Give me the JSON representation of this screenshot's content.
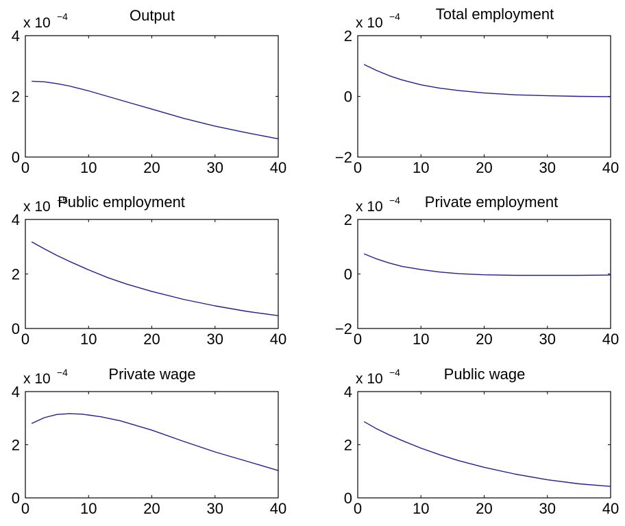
{
  "chart_data": [
    {
      "type": "line",
      "title": "Output",
      "multiplier": "x 10",
      "multiplier_exponent": "−4",
      "xlim": [
        0,
        40
      ],
      "ylim": [
        0,
        4
      ],
      "xticks": [
        0,
        10,
        20,
        30,
        40
      ],
      "yticks": [
        0,
        2,
        4
      ],
      "xtick_labels": [
        "0",
        "10",
        "20",
        "30",
        "40"
      ],
      "ytick_labels": [
        "0",
        "2",
        "4"
      ],
      "series": [
        {
          "color": "#1f1f8f",
          "x": [
            1,
            3,
            5,
            7,
            10,
            13,
            16,
            20,
            25,
            30,
            35,
            40
          ],
          "y": [
            2.5,
            2.48,
            2.42,
            2.34,
            2.18,
            2.0,
            1.82,
            1.58,
            1.28,
            1.02,
            0.8,
            0.6
          ]
        }
      ]
    },
    {
      "type": "line",
      "title": "Total employment",
      "multiplier": "x 10",
      "multiplier_exponent": "−4",
      "xlim": [
        0,
        40
      ],
      "ylim": [
        -2,
        2
      ],
      "xticks": [
        0,
        10,
        20,
        30,
        40
      ],
      "yticks": [
        -2,
        0,
        2
      ],
      "xtick_labels": [
        "0",
        "10",
        "20",
        "30",
        "40"
      ],
      "ytick_labels": [
        "−2",
        "0",
        "2"
      ],
      "series": [
        {
          "color": "#1f1f8f",
          "x": [
            1,
            3,
            5,
            7,
            10,
            13,
            16,
            20,
            25,
            30,
            35,
            40
          ],
          "y": [
            1.05,
            0.85,
            0.68,
            0.54,
            0.38,
            0.27,
            0.19,
            0.11,
            0.05,
            0.02,
            0.0,
            -0.01
          ]
        }
      ]
    },
    {
      "type": "line",
      "title": "Public employment",
      "multiplier": "x 10",
      "multiplier_exponent": "−5",
      "xlim": [
        0,
        40
      ],
      "ylim": [
        0,
        4
      ],
      "xticks": [
        0,
        10,
        20,
        30,
        40
      ],
      "yticks": [
        0,
        2,
        4
      ],
      "xtick_labels": [
        "0",
        "10",
        "20",
        "30",
        "40"
      ],
      "ytick_labels": [
        "0",
        "2",
        "4"
      ],
      "series": [
        {
          "color": "#1f1f8f",
          "x": [
            1,
            3,
            5,
            7,
            10,
            13,
            16,
            20,
            25,
            30,
            35,
            40
          ],
          "y": [
            3.18,
            2.92,
            2.68,
            2.46,
            2.15,
            1.87,
            1.63,
            1.36,
            1.07,
            0.83,
            0.63,
            0.47
          ]
        }
      ]
    },
    {
      "type": "line",
      "title": "Private employment",
      "multiplier": "x 10",
      "multiplier_exponent": "−4",
      "xlim": [
        0,
        40
      ],
      "ylim": [
        -2,
        2
      ],
      "xticks": [
        0,
        10,
        20,
        30,
        40
      ],
      "yticks": [
        -2,
        0,
        2
      ],
      "xtick_labels": [
        "0",
        "10",
        "20",
        "30",
        "40"
      ],
      "ytick_labels": [
        "−2",
        "0",
        "2"
      ],
      "series": [
        {
          "color": "#1f1f8f",
          "x": [
            1,
            3,
            5,
            7,
            10,
            13,
            16,
            20,
            25,
            30,
            35,
            40
          ],
          "y": [
            0.74,
            0.55,
            0.4,
            0.28,
            0.16,
            0.07,
            0.01,
            -0.03,
            -0.05,
            -0.05,
            -0.05,
            -0.04
          ]
        }
      ]
    },
    {
      "type": "line",
      "title": "Private wage",
      "multiplier": "x 10",
      "multiplier_exponent": "−4",
      "xlim": [
        0,
        40
      ],
      "ylim": [
        0,
        4
      ],
      "xticks": [
        0,
        10,
        20,
        30,
        40
      ],
      "yticks": [
        0,
        2,
        4
      ],
      "xtick_labels": [
        "0",
        "10",
        "20",
        "30",
        "40"
      ],
      "ytick_labels": [
        "0",
        "2",
        "4"
      ],
      "series": [
        {
          "color": "#1f1f8f",
          "x": [
            1,
            3,
            5,
            7,
            9,
            12,
            15,
            20,
            25,
            30,
            35,
            40
          ],
          "y": [
            2.8,
            3.02,
            3.14,
            3.17,
            3.15,
            3.05,
            2.9,
            2.55,
            2.13,
            1.73,
            1.38,
            1.03
          ]
        }
      ]
    },
    {
      "type": "line",
      "title": "Public wage",
      "multiplier": "x 10",
      "multiplier_exponent": "−4",
      "xlim": [
        0,
        40
      ],
      "ylim": [
        0,
        4
      ],
      "xticks": [
        0,
        10,
        20,
        30,
        40
      ],
      "yticks": [
        0,
        2,
        4
      ],
      "xtick_labels": [
        "0",
        "10",
        "20",
        "30",
        "40"
      ],
      "ytick_labels": [
        "0",
        "2",
        "4"
      ],
      "series": [
        {
          "color": "#1f1f8f",
          "x": [
            1,
            3,
            5,
            7,
            10,
            13,
            16,
            20,
            25,
            30,
            35,
            40
          ],
          "y": [
            2.87,
            2.6,
            2.37,
            2.16,
            1.87,
            1.62,
            1.4,
            1.15,
            0.89,
            0.68,
            0.53,
            0.43
          ]
        }
      ]
    }
  ]
}
